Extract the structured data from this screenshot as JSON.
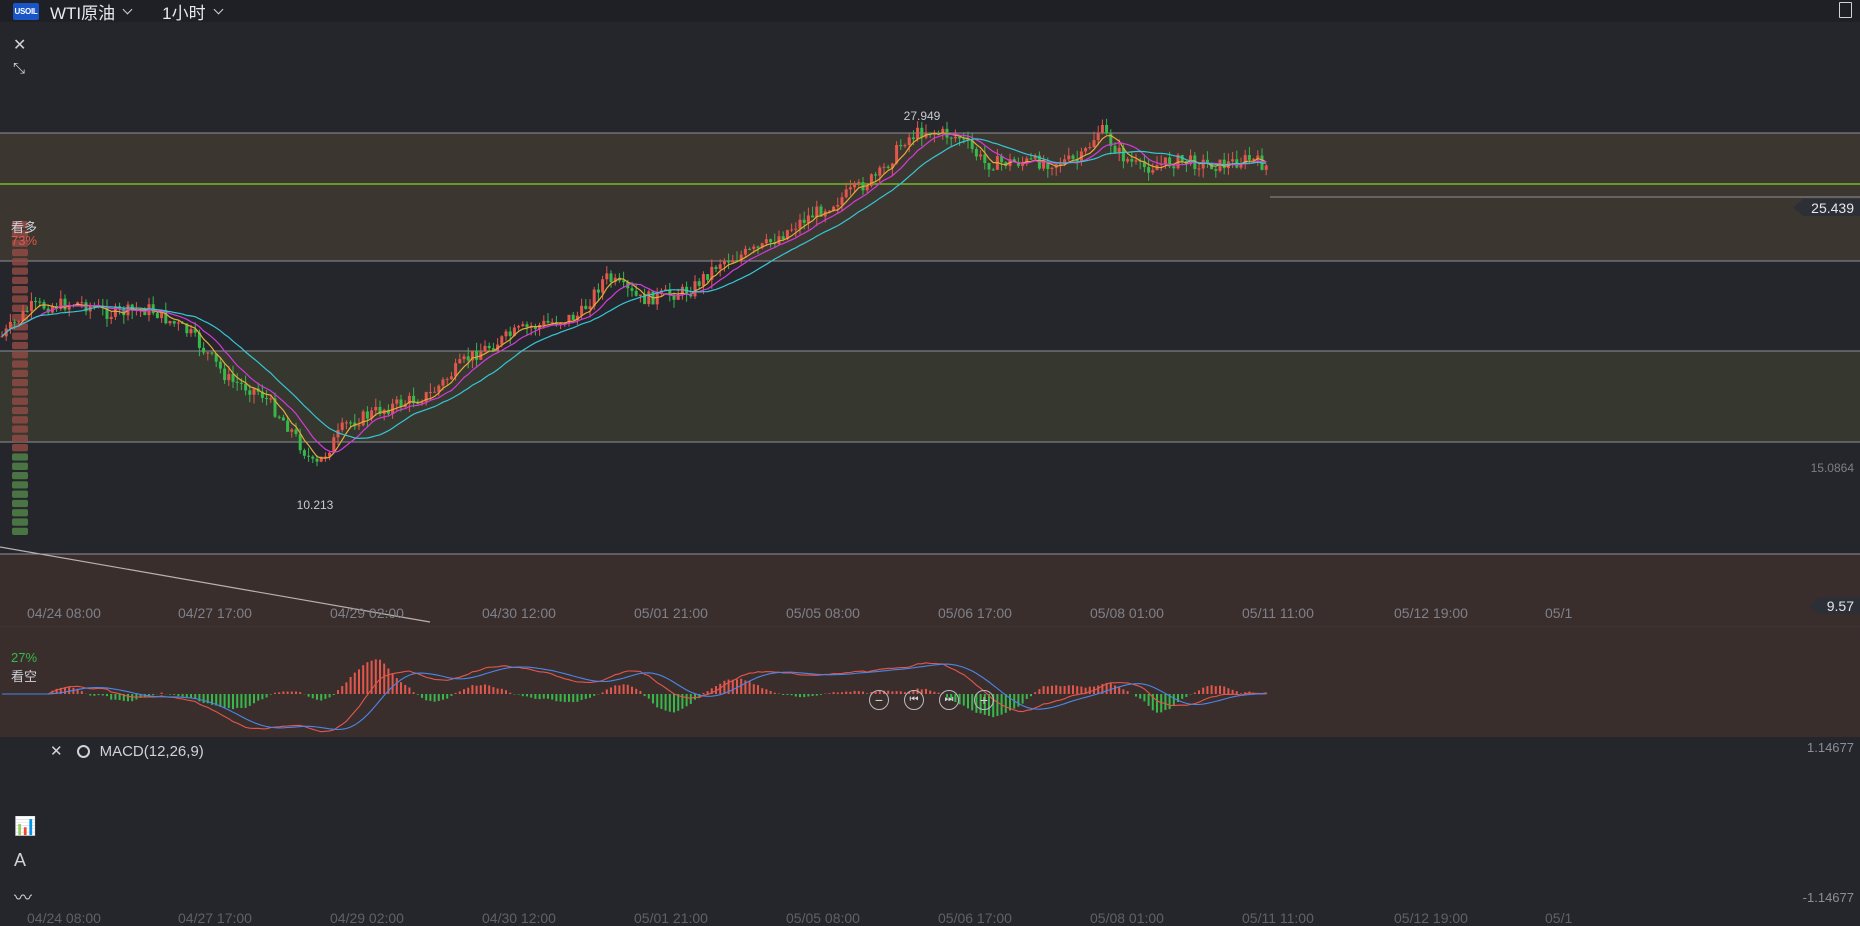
{
  "symbol": {
    "logo": "USOIL",
    "name": "WTI原油",
    "timeframe": "1小时"
  },
  "sentiment": {
    "bull_label": "看多",
    "bull_pct": "73%",
    "bear_label": "看空",
    "bear_pct": "27%",
    "bull_share": 0.73
  },
  "price_labels": {
    "current": "25.439",
    "right_low": "9.57",
    "mid_level": "15.0864",
    "high_marker": "27.949",
    "low_marker": "10.213"
  },
  "x_axis_labels": [
    "04/24 08:00",
    "04/27 17:00",
    "04/29 02:00",
    "04/30 12:00",
    "05/01 21:00",
    "05/05 08:00",
    "05/06 17:00",
    "05/08 01:00",
    "05/11 11:00",
    "05/12 19:00",
    "05/1"
  ],
  "macd": {
    "title": "MACD(12,26,9)",
    "max_label": "1.14677",
    "min_label": "-1.14677"
  },
  "colors": {
    "up": "#e2574c",
    "down": "#36b84a",
    "ma_fast": "#e7a93b",
    "ma_mid": "#d43adc",
    "ma_slow": "#36c6d4",
    "green_line": "#7ed321"
  },
  "icons": {
    "close": "close-icon",
    "collapse": "collapse-icon",
    "gear": "gear-icon",
    "window": "window-icon",
    "tools": [
      "indicator-icon",
      "drawing-icon",
      "wave-icon"
    ]
  }
}
